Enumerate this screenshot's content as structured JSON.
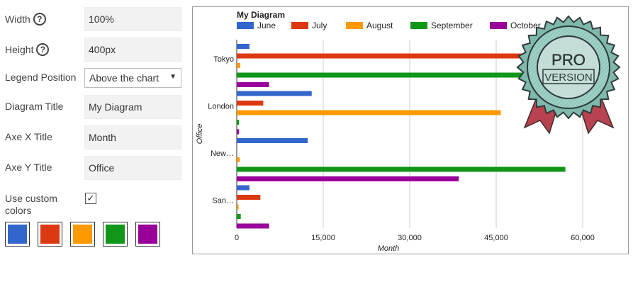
{
  "settings": {
    "width": {
      "label": "Width",
      "value": "100%",
      "help": "?"
    },
    "height": {
      "label": "Height",
      "value": "400px",
      "help": "?"
    },
    "legend_position": {
      "label": "Legend Position",
      "value": "Above the chart",
      "caret": "▼"
    },
    "diagram_title": {
      "label": "Diagram Title",
      "value": "My Diagram"
    },
    "axe_x_title": {
      "label": "Axe X Title",
      "value": "Month"
    },
    "axe_y_title": {
      "label": "Axe Y Title",
      "value": "Office"
    },
    "use_custom_colors": {
      "label": "Use custom colors",
      "checked": true,
      "mark": "✓"
    },
    "colors": [
      "#3366cc",
      "#dc3912",
      "#ff9900",
      "#109618",
      "#990099"
    ]
  },
  "badge": {
    "line1": "PRO",
    "line2": "VERSION"
  },
  "chart_data": {
    "type": "bar",
    "orientation": "horizontal",
    "title": "My Diagram",
    "xlabel": "Month",
    "ylabel": "Office",
    "xlim": [
      0,
      60000
    ],
    "xticks": [
      "0",
      "15,000",
      "30,000",
      "45,000",
      "60,000"
    ],
    "xtick_values": [
      0,
      15000,
      30000,
      45000,
      60000
    ],
    "grid": true,
    "legend_placement": "top",
    "categories": [
      "Tokyo",
      "London",
      "New…",
      "San…"
    ],
    "series": [
      {
        "name": "June",
        "color": "#3366cc",
        "values": [
          2200,
          13000,
          12300,
          2200
        ]
      },
      {
        "name": "July",
        "color": "#dc3912",
        "values": [
          51000,
          4600,
          0,
          4100
        ]
      },
      {
        "name": "August",
        "color": "#ff9900",
        "values": [
          600,
          45800,
          500,
          300
        ]
      },
      {
        "name": "September",
        "color": "#109618",
        "values": [
          52000,
          400,
          57000,
          700
        ]
      },
      {
        "name": "October",
        "color": "#990099",
        "values": [
          5600,
          400,
          38500,
          5600
        ]
      }
    ]
  }
}
